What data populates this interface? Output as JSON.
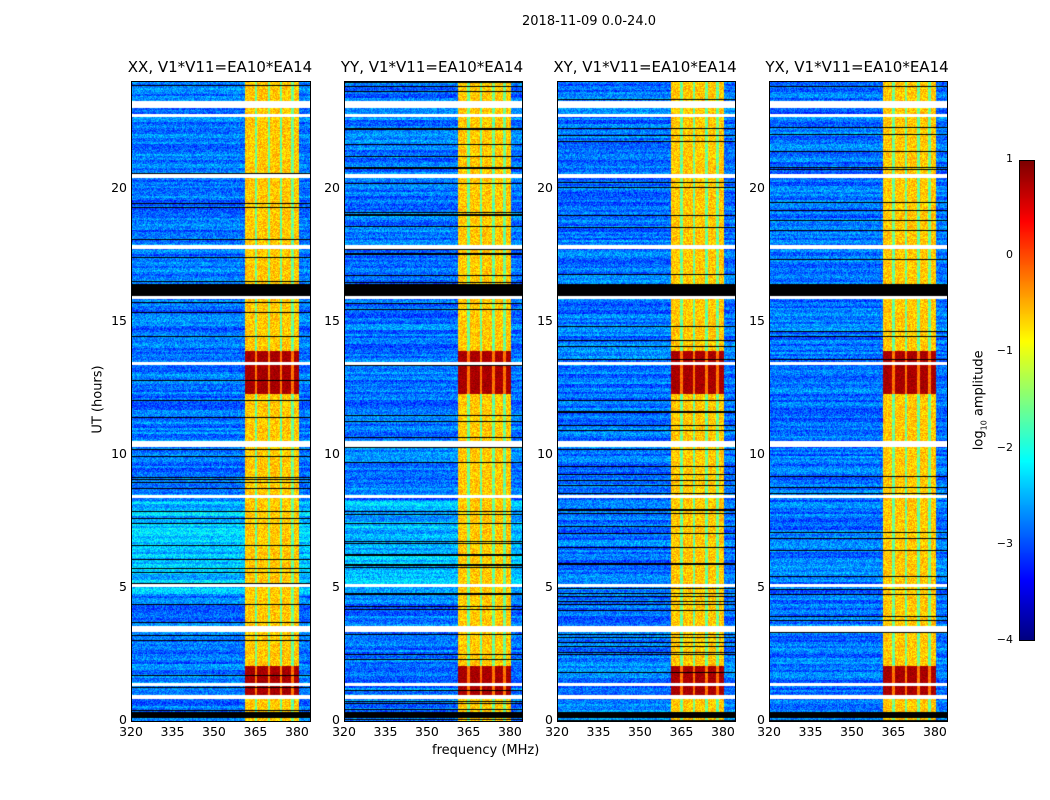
{
  "suptitle": "2018-11-09 0.0-24.0",
  "panels": [
    {
      "title": "XX, V1*V11=EA10*EA14",
      "bg_offset": 0.35
    },
    {
      "title": "YY, V1*V11=EA10*EA14",
      "bg_offset": 0.3
    },
    {
      "title": "XY, V1*V11=EA10*EA14",
      "bg_offset": 0.0
    },
    {
      "title": "YX, V1*V11=EA10*EA14",
      "bg_offset": 0.0
    }
  ],
  "chart_data": {
    "type": "heatmap",
    "title": "2018-11-09 0.0-24.0",
    "xlabel": "frequency (MHz)",
    "ylabel": "UT (hours)",
    "xlim": [
      320,
      384
    ],
    "ylim": [
      0,
      24
    ],
    "xticks": [
      "320",
      "335",
      "350",
      "365",
      "380"
    ],
    "xtick_values": [
      320,
      335,
      350,
      365,
      380
    ],
    "yticks": [
      "0",
      "5",
      "10",
      "15",
      "20"
    ],
    "ytick_values": [
      0,
      5,
      10,
      15,
      20
    ],
    "colorbar": {
      "label": "log10 amplitude",
      "label_main": "log",
      "label_sub": "10",
      "label_rest": " amplitude",
      "range": [
        -4,
        1
      ],
      "ticks": [
        "1",
        "0",
        "−1",
        "−2",
        "−3",
        "−4"
      ],
      "tick_values": [
        1,
        0,
        -1,
        -2,
        -3,
        -4
      ],
      "colormap": "jet"
    },
    "background_log_amplitude": -2.8,
    "rfi_band_mhz": [
      360.5,
      380
    ],
    "rfi_band_log_amplitude": -0.6,
    "rfi_strong_hours": [
      [
        1.0,
        2.1
      ],
      [
        12.3,
        13.9
      ]
    ],
    "rfi_strong_log_amplitude": 0.8,
    "flagged_black_hours": [
      [
        0.15,
        0.35
      ],
      [
        16.0,
        16.45
      ]
    ],
    "flagged_white_hours": [
      [
        0.85,
        1.0
      ],
      [
        1.35,
        1.45
      ],
      [
        3.35,
        3.6
      ],
      [
        5.05,
        5.15
      ],
      [
        8.4,
        8.5
      ],
      [
        10.3,
        10.55
      ],
      [
        13.4,
        13.5
      ],
      [
        15.85,
        16.0
      ],
      [
        17.75,
        17.9
      ],
      [
        20.4,
        20.55
      ],
      [
        22.7,
        22.8
      ],
      [
        23.05,
        23.3
      ]
    ]
  }
}
